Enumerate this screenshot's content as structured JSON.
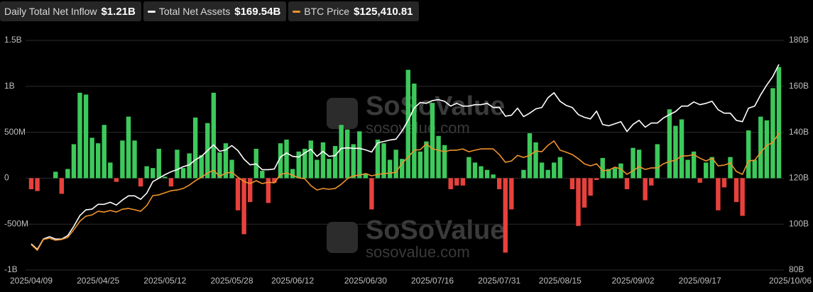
{
  "chart_data": {
    "type": "bar-line",
    "watermark": {
      "brand": "SoSoValue",
      "url": "sosovalue.com"
    },
    "categories": [
      "2025/04/09",
      null,
      null,
      null,
      null,
      null,
      null,
      null,
      null,
      null,
      null,
      "2025/04/25",
      null,
      null,
      null,
      null,
      null,
      null,
      null,
      null,
      null,
      null,
      "2025/05/12",
      null,
      null,
      null,
      null,
      null,
      null,
      null,
      null,
      null,
      null,
      "2025/05/28",
      null,
      null,
      null,
      null,
      null,
      null,
      null,
      null,
      null,
      "2025/06/12",
      null,
      null,
      null,
      null,
      null,
      null,
      null,
      null,
      null,
      null,
      null,
      "2025/06/30",
      null,
      null,
      null,
      null,
      null,
      null,
      null,
      null,
      null,
      null,
      "2025/07/16",
      null,
      null,
      null,
      null,
      null,
      null,
      null,
      null,
      null,
      null,
      "2025/07/31",
      null,
      null,
      null,
      null,
      null,
      null,
      null,
      null,
      null,
      "2025/08/15",
      null,
      null,
      null,
      null,
      null,
      null,
      null,
      null,
      null,
      null,
      null,
      "2025/09/02",
      null,
      null,
      null,
      null,
      null,
      null,
      null,
      null,
      null,
      null,
      "2025/09/17",
      null,
      null,
      null,
      null,
      null,
      null,
      null,
      null,
      null,
      null,
      null,
      "2025/10/06",
      null
    ],
    "ylim": [
      -1000,
      1500
    ],
    "yticks": [
      {
        "value": 1500,
        "label": "1.5B"
      },
      {
        "value": 1000,
        "label": "1B"
      },
      {
        "value": 500,
        "label": "500M"
      },
      0,
      {
        "value": -500,
        "label": "-500M"
      },
      {
        "value": -1000,
        "label": "-1B"
      }
    ],
    "y2lim": [
      80,
      180
    ],
    "y2ticks": [
      {
        "value": 180,
        "label": "180B"
      },
      {
        "value": 160,
        "label": "160B"
      },
      {
        "value": 140,
        "label": "140B"
      },
      {
        "value": 120,
        "label": "120B"
      },
      {
        "value": 100,
        "label": "100B"
      },
      {
        "value": 80,
        "label": "80B"
      }
    ],
    "y3lim": [
      72100,
      161600
    ],
    "grid": true,
    "series": [
      {
        "name": "Daily Total Net Inflow",
        "value_label": "$1.21B",
        "kind": "bar",
        "color": "#3dc95b",
        "negative_color": "#e8413c",
        "values": [
          -120,
          -140,
          0,
          0,
          70,
          -170,
          100,
          370,
          930,
          910,
          440,
          380,
          580,
          170,
          -40,
          410,
          670,
          410,
          -90,
          130,
          110,
          320,
          15,
          -90,
          310,
          110,
          270,
          660,
          250,
          600,
          930,
          280,
          380,
          200,
          -350,
          -610,
          -260,
          320,
          80,
          -270,
          -50,
          380,
          420,
          100,
          290,
          320,
          410,
          200,
          390,
          210,
          350,
          580,
          530,
          370,
          510,
          50,
          -340,
          420,
          380,
          200,
          310,
          210,
          1180,
          1030,
          290,
          400,
          820,
          460,
          360,
          -120,
          -80,
          -80,
          230,
          170,
          130,
          90,
          40,
          -120,
          -810,
          -340,
          0,
          90,
          490,
          390,
          170,
          90,
          170,
          230,
          0,
          -120,
          -520,
          -320,
          -190,
          -20,
          220,
          100,
          110,
          160,
          -120,
          330,
          310,
          -240,
          -80,
          370,
          0,
          750,
          570,
          640,
          200,
          290,
          -50,
          170,
          230,
          -350,
          -100,
          230,
          -260,
          -410,
          520,
          200,
          670,
          630,
          980,
          1210
        ]
      },
      {
        "name": "Total Net Assets",
        "value_label": "$169.54B",
        "kind": "line",
        "axis": "y2",
        "color": "#ffffff",
        "values": [
          91.4,
          89,
          93.5,
          94.5,
          93.5,
          93.5,
          95,
          99,
          103.7,
          106.2,
          106.5,
          108.6,
          108.6,
          109.5,
          108.3,
          110.5,
          112.3,
          112.3,
          110.8,
          113.5,
          118.5,
          120,
          121.5,
          122.8,
          123.7,
          125,
          125.8,
          128,
          129.5,
          132,
          134.5,
          131.7,
          132.3,
          134.2,
          132,
          128.3,
          125.8,
          126.2,
          123.7,
          123.7,
          124,
          129.2,
          131,
          129.5,
          129.2,
          131,
          132.6,
          129.5,
          131.7,
          129.5,
          129.8,
          133,
          133.2,
          133,
          133,
          132.3,
          131.4,
          135.4,
          136,
          136.6,
          137,
          140.6,
          145.2,
          150.5,
          153,
          152.6,
          153.8,
          154.2,
          153.5,
          151.4,
          152.6,
          151.4,
          151.4,
          152,
          152,
          152.6,
          150.8,
          150.8,
          147,
          147.4,
          150.5,
          146.8,
          148.3,
          150.2,
          150.8,
          155,
          157.2,
          153.5,
          151.7,
          150.8,
          147.7,
          146.5,
          145.8,
          149.2,
          143.4,
          142.8,
          143.7,
          144.6,
          140.3,
          143.4,
          145.2,
          142.2,
          144,
          144,
          146.2,
          147.7,
          149,
          151.4,
          151.4,
          153.2,
          152,
          152.6,
          153.5,
          149.8,
          148.3,
          148.3,
          145.2,
          144.6,
          150.5,
          151.4,
          156.3,
          160.6,
          164.3,
          169.54
        ]
      },
      {
        "name": "BTC Price",
        "value_label": "$125,410.81",
        "kind": "line",
        "axis": "y3",
        "color": "#f0932b",
        "values": [
          82000,
          79800,
          84000,
          84500,
          83700,
          84000,
          84800,
          87800,
          91100,
          93100,
          93600,
          95000,
          94700,
          95300,
          94700,
          95800,
          96100,
          95600,
          95000,
          97200,
          101100,
          101400,
          102200,
          103000,
          103300,
          103900,
          105200,
          106900,
          108300,
          109900,
          111000,
          108600,
          109900,
          110200,
          108300,
          106600,
          105800,
          106900,
          105800,
          106300,
          106100,
          109400,
          109900,
          109100,
          108000,
          107700,
          105000,
          103300,
          103900,
          103600,
          103900,
          105500,
          107700,
          108800,
          109100,
          109700,
          108800,
          109400,
          109700,
          109900,
          110200,
          113800,
          116000,
          118800,
          119000,
          121300,
          119300,
          118800,
          118200,
          118800,
          118800,
          119300,
          118200,
          118800,
          119300,
          119300,
          119300,
          117100,
          114100,
          114600,
          116800,
          116000,
          116800,
          118500,
          118200,
          120700,
          122400,
          118800,
          118000,
          117100,
          115500,
          113500,
          112700,
          113500,
          110800,
          111000,
          112200,
          111500,
          109400,
          110800,
          112400,
          111300,
          111900,
          111900,
          113500,
          114400,
          114900,
          116600,
          116600,
          117100,
          115700,
          114600,
          115700,
          112700,
          113000,
          113800,
          110500,
          109400,
          114600,
          114900,
          117900,
          120700,
          121800,
          125410.81
        ]
      }
    ]
  }
}
